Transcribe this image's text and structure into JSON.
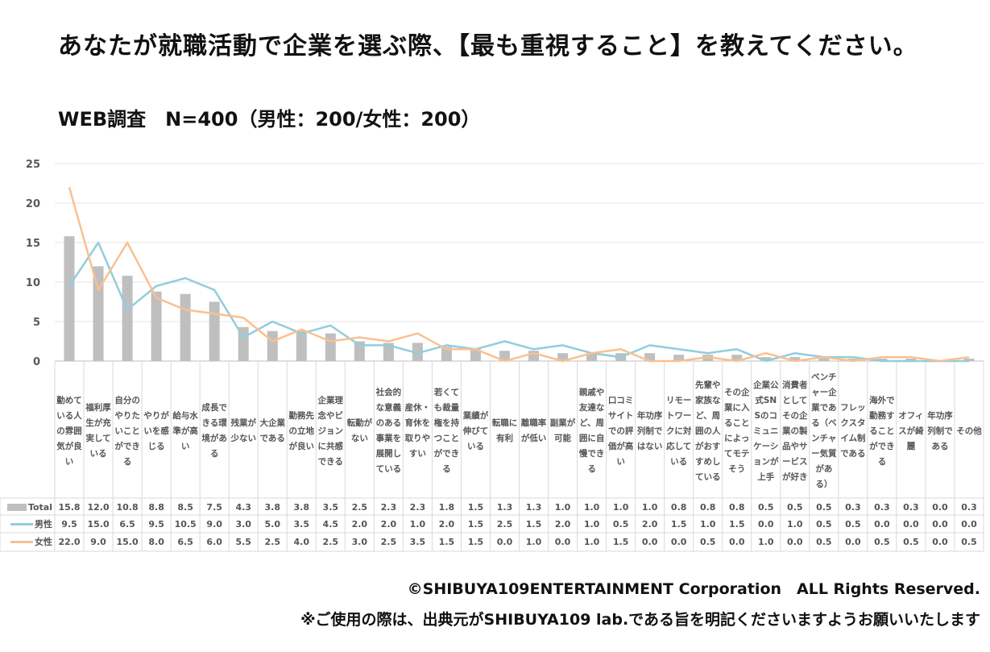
{
  "title": "あなたが就職活動で企業を選ぶ際、【最も重視すること】を教えてください。",
  "subtitle": "WEB調査　N=400（男性：200/女性：200）",
  "footer": {
    "copyright": "©SHIBUYA109ENTERTAINMENT Corporation　ALL Rights Reserved.",
    "note": "※ご使用の際は、出典元がSHIBUYA109 lab.である旨を明記くださいますようお願いいたします"
  },
  "chart_data": {
    "type": "bar+line",
    "title": "あなたが就職活動で企業を選ぶ際、【最も重視すること】を教えてください。",
    "ylim": [
      0,
      25
    ],
    "yticks": [
      "0",
      "5",
      "10",
      "15",
      "20",
      "25"
    ],
    "categories": [
      "勤めている人の雰囲気が良い",
      "福利厚生が充実している",
      "自分のやりたいことができる",
      "やりがいを感じる",
      "給与水準が高い",
      "成長できる環境がある",
      "残業が少ない",
      "大企業である",
      "勤務先の立地が良い",
      "企業理念やビジョンに共感できる",
      "転勤がない",
      "社会的な意義のある事業を展開している",
      "産休・育休を取りやすい",
      "若くても裁量権を持つことができる",
      "業績が伸びている",
      "転職に有利",
      "離職率が低い",
      "副業が可能",
      "親戚や友達など、周囲に自慢できる",
      "口コミサイトでの評価が高い",
      "年功序列制ではない",
      "リモートワークに対応している",
      "先輩や家族など、周囲の人がおすすめしている",
      "その企業に入ることによってモテそう",
      "企業公式SNSのコミュニケーションが上手",
      "消費者としてその企業の製品やサービスが好き",
      "ベンチャー企業である（ベンチャー気質がある）",
      "フレックスタイム制である",
      "海外で勤務することができる",
      "オフィスが綺麗",
      "年功序列制である",
      "その他"
    ],
    "series": [
      {
        "name": "Total",
        "type": "bar",
        "color": "#bfbfbf",
        "values": [
          15.8,
          12.0,
          10.8,
          8.8,
          8.5,
          7.5,
          4.3,
          3.8,
          3.8,
          3.5,
          2.5,
          2.3,
          2.3,
          1.8,
          1.5,
          1.3,
          1.3,
          1.0,
          1.0,
          1.0,
          1.0,
          0.8,
          0.8,
          0.8,
          0.5,
          0.5,
          0.5,
          0.3,
          0.3,
          0.3,
          0.0,
          0.3
        ]
      },
      {
        "name": "男性",
        "type": "line",
        "color": "#92cddc",
        "values": [
          9.5,
          15.0,
          6.5,
          9.5,
          10.5,
          9.0,
          3.0,
          5.0,
          3.5,
          4.5,
          2.0,
          2.0,
          1.0,
          2.0,
          1.5,
          2.5,
          1.5,
          2.0,
          1.0,
          0.5,
          2.0,
          1.5,
          1.0,
          1.5,
          0.0,
          1.0,
          0.5,
          0.5,
          0.0,
          0.0,
          0.0,
          0.0
        ]
      },
      {
        "name": "女性",
        "type": "line",
        "color": "#fac090",
        "values": [
          22.0,
          9.0,
          15.0,
          8.0,
          6.5,
          6.0,
          5.5,
          2.5,
          4.0,
          2.5,
          3.0,
          2.5,
          3.5,
          1.5,
          1.5,
          0.0,
          1.0,
          0.0,
          1.0,
          1.5,
          0.0,
          0.0,
          0.5,
          0.0,
          1.0,
          0.0,
          0.5,
          0.0,
          0.5,
          0.5,
          0.0,
          0.5
        ]
      }
    ],
    "grid": true,
    "legend": "data-table"
  }
}
